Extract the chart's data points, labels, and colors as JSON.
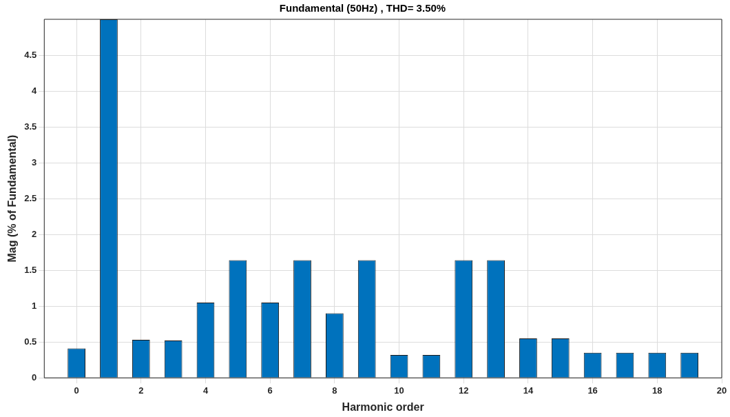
{
  "chart_data": {
    "type": "bar",
    "title": "Fundamental (50Hz) , THD= 3.50%",
    "xlabel": "Harmonic order",
    "ylabel": "Mag (% of Fundamental)",
    "x": [
      0,
      1,
      2,
      3,
      4,
      5,
      6,
      7,
      8,
      9,
      10,
      11,
      12,
      13,
      14,
      15,
      16,
      17,
      18,
      19
    ],
    "values": [
      0.41,
      5,
      0.53,
      0.52,
      1.05,
      1.64,
      1.05,
      1.64,
      0.9,
      1.64,
      0.32,
      0.32,
      1.64,
      1.64,
      0.55,
      0.55,
      0.35,
      0.35,
      0.35,
      0.35
    ],
    "color": "#0072bd",
    "xlim": [
      -1,
      20
    ],
    "xticks": [
      0,
      2,
      4,
      6,
      8,
      10,
      12,
      14,
      16,
      18,
      20
    ],
    "ylim": [
      0,
      5
    ],
    "yticks": [
      0,
      0.5,
      1,
      1.5,
      2,
      2.5,
      3,
      3.5,
      4,
      4.5
    ],
    "grid": true,
    "legend": false
  }
}
